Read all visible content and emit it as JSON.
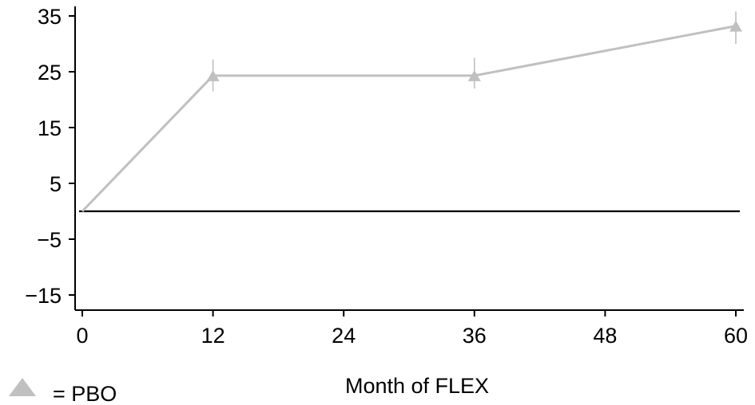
{
  "chart_data": {
    "type": "line",
    "xlabel": "Month of FLEX",
    "ylabel": "",
    "x_ticks": [
      0,
      12,
      24,
      36,
      48,
      60
    ],
    "y_ticks": [
      35,
      25,
      15,
      5,
      -5,
      -15
    ],
    "y_tick_labels": [
      "35",
      "25",
      "15",
      "5",
      "−5",
      "−15"
    ],
    "xlim": [
      -0.6,
      60.6
    ],
    "ylim": [
      -17.5,
      37
    ],
    "reference_line_y": 0,
    "grid": false,
    "legend": {
      "position": "bottom-left",
      "symbol": "triangle",
      "label": "= PBO"
    },
    "series": [
      {
        "name": "PBO",
        "color": "#c0c0c0",
        "marker": "triangle",
        "x": [
          0,
          12,
          36,
          60
        ],
        "y": [
          0,
          24.3,
          24.3,
          33.2
        ],
        "err_low": [
          0,
          21.5,
          22.0,
          30.0
        ],
        "err_high": [
          0,
          27.2,
          27.5,
          35.8
        ]
      }
    ]
  }
}
